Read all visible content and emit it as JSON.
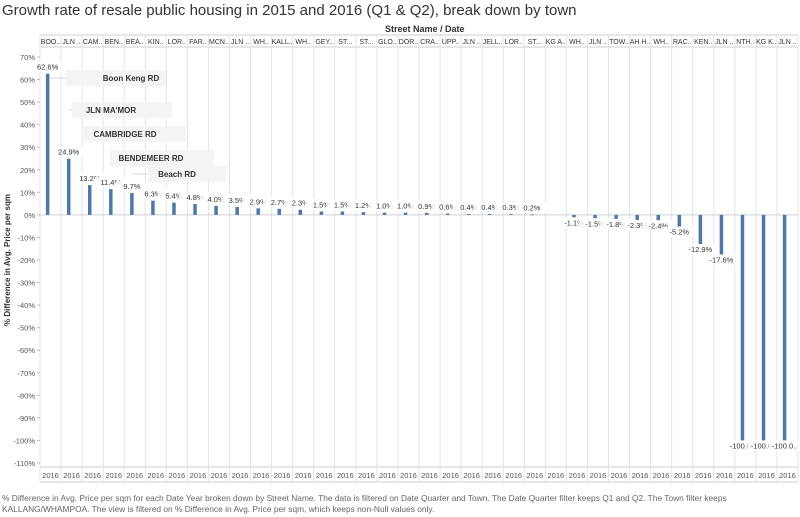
{
  "title": "Growth rate of resale public housing in 2015 and 2016 (Q1 & Q2), break down by town",
  "column_header": "Street Name  /  Date",
  "footnote": "% Difference in Avg. Price per sqm for each Date Year broken down by Street Name. The data is filtered on Date Quarter and Town. The Date Quarter filter keeps Q1 and Q2. The Town filter keeps KALLANG/WHAMPOA. The view is filtered on % Difference in Avg. Price per sqm, which keeps non-Null values only.",
  "chart_data": {
    "type": "bar",
    "ylabel": "% Difference in Avg. Price per sqm",
    "ylim": [
      -110,
      70
    ],
    "yticks": [
      70,
      60,
      50,
      40,
      30,
      20,
      10,
      0,
      -10,
      -20,
      -30,
      -40,
      -50,
      -60,
      -70,
      -80,
      -90,
      -100,
      -110
    ],
    "ytick_labels": [
      "70%",
      "60%",
      "50%",
      "40%",
      "30%",
      "20%",
      "10%",
      "0%",
      "-10%",
      "-20%",
      "-30%",
      "-40%",
      "-50%",
      "-60%",
      "-70%",
      "-80%",
      "-90%",
      "-100%",
      "-110%"
    ],
    "categories": [
      "BOO..",
      "JLN ..",
      "CAM..",
      "BEN..",
      "BEA..",
      "KIN..",
      "LOR..",
      "FAR..",
      "MCN..",
      "JLN ..",
      "WH..",
      "KALL..",
      "WH..",
      "GEY..",
      "ST...",
      "ST...",
      "GLO..",
      "DOR..",
      "CRA..",
      "UPP..",
      "JLN ..",
      "JELL..",
      "LOR..",
      "ST...",
      "KG A..",
      "WH..",
      "JLN ..",
      "TOW..",
      "AH H..",
      "WH..",
      "RAC..",
      "KEN..",
      "JLN ..",
      "NTH..",
      "KG K..",
      "JLN .."
    ],
    "x_label_each": "2016",
    "values": [
      62.6,
      24.9,
      13.2,
      11.4,
      9.7,
      6.3,
      5.4,
      4.8,
      4.0,
      3.5,
      2.9,
      2.7,
      2.3,
      1.5,
      1.5,
      1.2,
      1.0,
      1.0,
      0.9,
      0.6,
      0.4,
      0.4,
      0.3,
      0.2,
      null,
      -1.1,
      -1.5,
      -1.8,
      -2.3,
      -2.4,
      -5.2,
      -12.9,
      -17.6,
      -100.0,
      -100.0,
      -100.0
    ],
    "data_labels": [
      "62.6%",
      "24.9%",
      "13.2%",
      "11.4%",
      "9.7%",
      "6.3%",
      "5.4%",
      "4.8%",
      "4.0%",
      "3.5%",
      "2.9%",
      "2.7%",
      "2.3%",
      "1.5%",
      "1.5%",
      "1.2%",
      "1.0%",
      "1.0%",
      "0.9%",
      "0.6%",
      "0.4%",
      "0.4%",
      "0.3%",
      "0.2%",
      "",
      "-1.1%",
      "-1.5%",
      "-1.8%",
      "-2.3%",
      "-2.4%",
      "-5.2%",
      "-12.9%",
      "-17.6%",
      "-100.0..",
      "-100.0..",
      "-100.0.."
    ],
    "annotations": [
      "Boon Keng RD",
      "JLN MA'MOR",
      "CAMBRIDGE RD",
      "BENDEMEER RD",
      "Beach RD"
    ],
    "bar_color": "#4e79a7",
    "grid": true
  }
}
